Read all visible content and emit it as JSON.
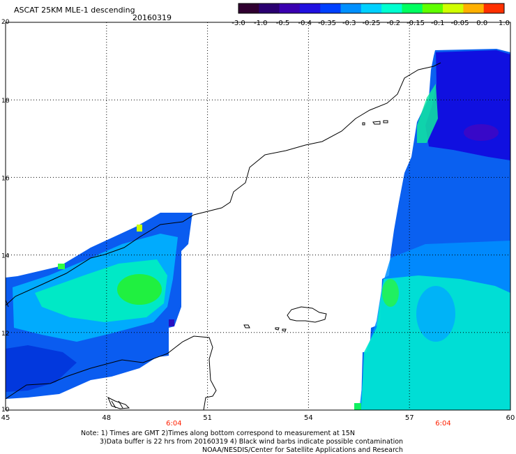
{
  "header": {
    "title": "ASCAT 25KM MLE-1 descending",
    "date": "20160319"
  },
  "colorbar": {
    "labels": [
      "-3.0",
      "-1.0",
      "-0.5",
      "-0.4",
      "-0.35",
      "-0.3",
      "-0.25",
      "-0.2",
      "-0.15",
      "-0.1",
      "-0.05",
      "0.0",
      "1.0"
    ],
    "colors": [
      "#300030",
      "#2a0070",
      "#3a00b0",
      "#2010e0",
      "#0040ff",
      "#0090ff",
      "#00d0ff",
      "#00ffd0",
      "#00ff60",
      "#60ff00",
      "#d0ff00",
      "#ffb000",
      "#ff3000"
    ]
  },
  "map": {
    "lon_labels": [
      "45",
      "48",
      "51",
      "54",
      "57",
      "60"
    ],
    "lat_labels": [
      "20",
      "18",
      "16",
      "14",
      "12",
      "10"
    ],
    "time_labels": [
      {
        "lon": 50,
        "text": "6:04"
      },
      {
        "lon": 58,
        "text": "6:04"
      }
    ],
    "time_color": "#ff2000"
  },
  "footer": {
    "note_line1": "Note: 1) Times are GMT 2)Times along bottom correspond to measurement at 15N",
    "note_line2": "3)Data buffer is 22 hrs from 20160319 4) Black wind barbs indicate possible contamination",
    "note_line3": "NOAA/NESDIS/Center for Satellite Applications and Research"
  }
}
